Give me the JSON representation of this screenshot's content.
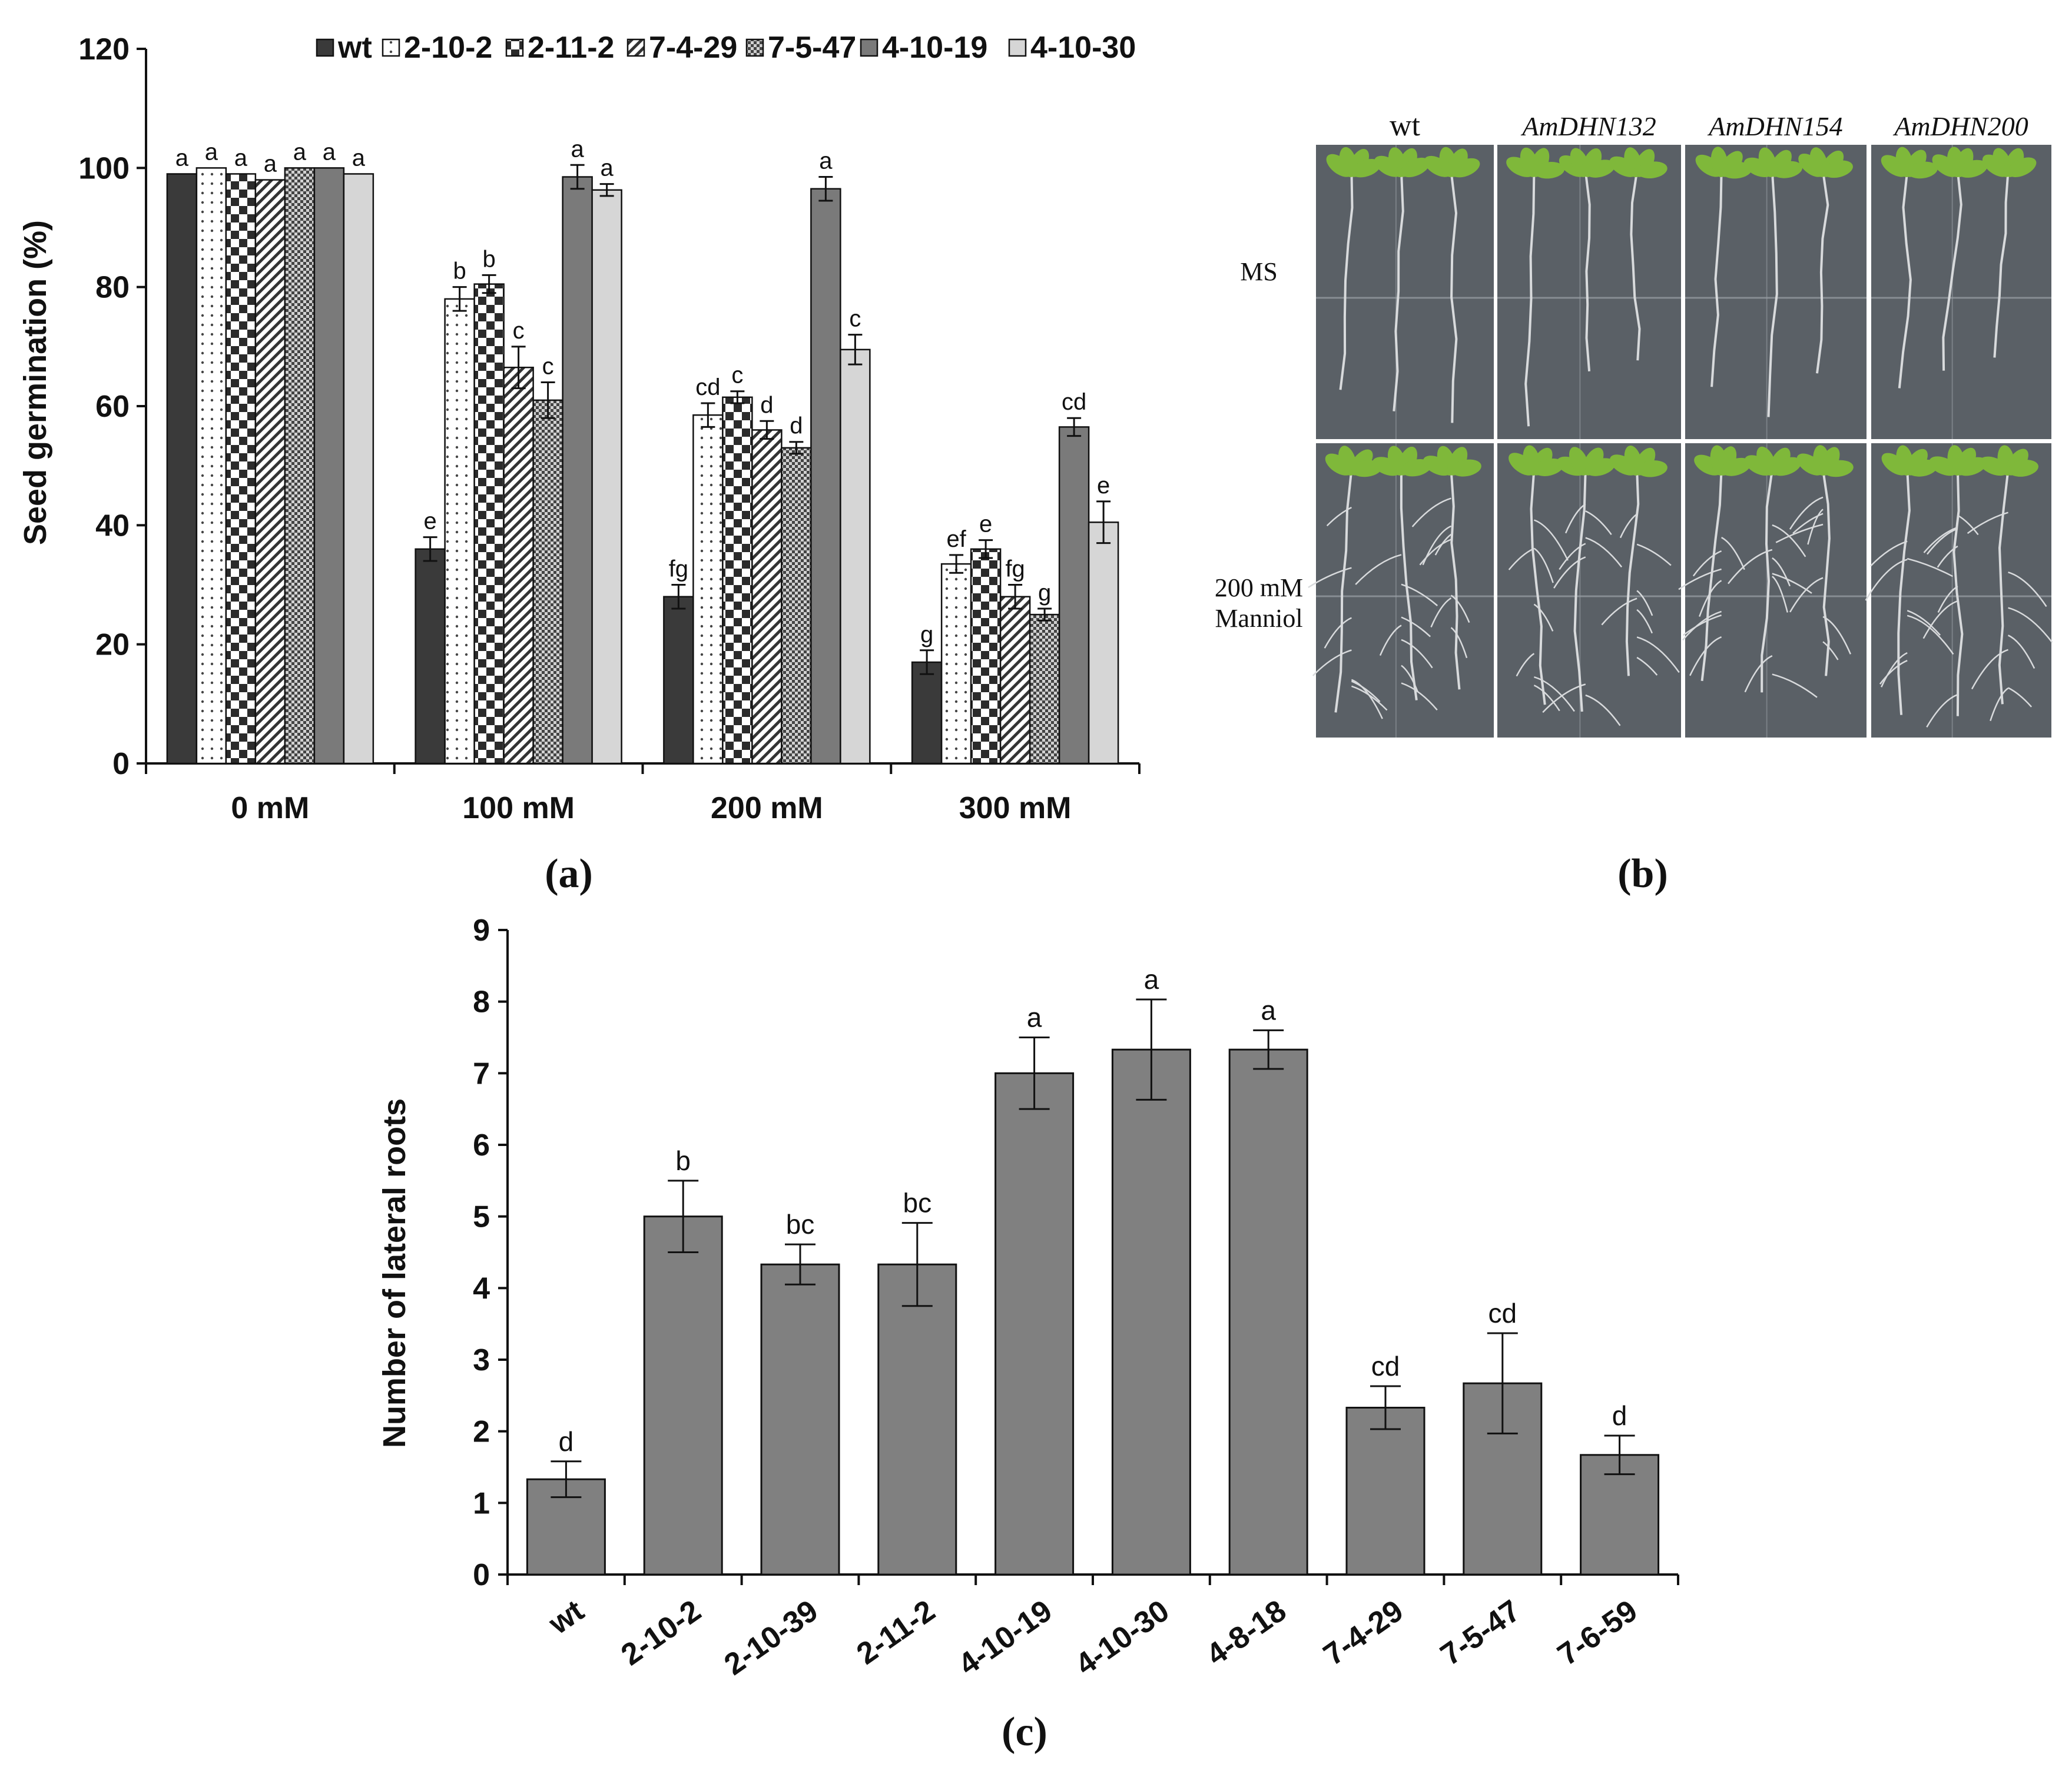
{
  "chart_data": [
    {
      "id": "a",
      "type": "bar",
      "panel_label": "(a)",
      "ylabel": "Seed germination (%)",
      "xlabel": "",
      "ylim": [
        0,
        120
      ],
      "yticks": [
        0,
        20,
        40,
        60,
        80,
        100,
        120
      ],
      "categories": [
        "0 mM",
        "100 mM",
        "200 mM",
        "300 mM"
      ],
      "legend_position": "top",
      "series": [
        {
          "name": "wt",
          "color": "#3a3a3a",
          "pattern": "solid-dark",
          "values": [
            99,
            36,
            28,
            17
          ],
          "errors": [
            0,
            2,
            2,
            2
          ],
          "letters": [
            "a",
            "e",
            "fg",
            "g"
          ]
        },
        {
          "name": "2-10-2",
          "color": "#ffffff",
          "pattern": "dots",
          "values": [
            100,
            78,
            58.5,
            33.5
          ],
          "errors": [
            0,
            2,
            2,
            1.5
          ],
          "letters": [
            "a",
            "b",
            "cd",
            "ef"
          ]
        },
        {
          "name": "2-11-2",
          "color": "#333333",
          "pattern": "checker",
          "values": [
            99,
            80.5,
            61.5,
            36
          ],
          "errors": [
            0,
            1.5,
            1,
            1.5
          ],
          "letters": [
            "a",
            "b",
            "c",
            "e"
          ]
        },
        {
          "name": "7-4-29",
          "color": "#ffffff",
          "pattern": "diagonal",
          "values": [
            98,
            66.5,
            56,
            28
          ],
          "errors": [
            0,
            3.5,
            1.5,
            2
          ],
          "letters": [
            "a",
            "c",
            "d",
            "fg"
          ]
        },
        {
          "name": "7-5-47",
          "color": "#888888",
          "pattern": "fine-checker",
          "values": [
            100,
            61,
            53,
            25
          ],
          "errors": [
            0,
            3,
            1,
            1
          ],
          "letters": [
            "a",
            "c",
            "d",
            "g"
          ]
        },
        {
          "name": "4-10-19",
          "color": "#7a7a7a",
          "pattern": "solid-mid",
          "values": [
            100,
            98.5,
            96.5,
            56.5
          ],
          "errors": [
            0,
            2,
            2,
            1.5
          ],
          "letters": [
            "a",
            "a",
            "a",
            "cd"
          ]
        },
        {
          "name": "4-10-30",
          "color": "#d6d6d6",
          "pattern": "solid-light",
          "values": [
            99,
            96.3,
            69.5,
            40.5
          ],
          "errors": [
            0,
            1,
            2.5,
            3.5
          ],
          "letters": [
            "a",
            "a",
            "c",
            "e"
          ]
        }
      ]
    },
    {
      "id": "c",
      "type": "bar",
      "panel_label": "(c)",
      "ylabel": "Number of lateral roots",
      "xlabel": "",
      "ylim": [
        0,
        9
      ],
      "yticks": [
        0,
        1,
        2,
        3,
        4,
        5,
        6,
        7,
        8,
        9
      ],
      "categories": [
        "wt",
        "2-10-2",
        "2-10-39",
        "2-11-2",
        "4-10-19",
        "4-10-30",
        "4-8-18",
        "7-4-29",
        "7-5-47",
        "7-6-59"
      ],
      "series": [
        {
          "name": "Number of lateral roots",
          "color": "#808080",
          "values": [
            1.33,
            5.0,
            4.33,
            4.33,
            7.0,
            7.33,
            7.33,
            2.33,
            2.67,
            1.67
          ],
          "errors": [
            0.25,
            0.5,
            0.28,
            0.58,
            0.5,
            0.7,
            0.27,
            0.3,
            0.7,
            0.27
          ],
          "letters": [
            "d",
            "b",
            "bc",
            "bc",
            "a",
            "a",
            "a",
            "cd",
            "cd",
            "d"
          ]
        }
      ]
    }
  ],
  "panel_b": {
    "label": "(b)",
    "columns": [
      "wt",
      "AmDHN132",
      "AmDHN154",
      "AmDHN200"
    ],
    "rows": [
      "MS",
      "200 mM Manniol"
    ],
    "row_lines": [
      [
        "MS"
      ],
      [
        "200 mM",
        "Manniol"
      ]
    ],
    "plate_color": "#5a6066",
    "leaf_color": "#7fb83a",
    "root_color": "#d8dadc"
  }
}
